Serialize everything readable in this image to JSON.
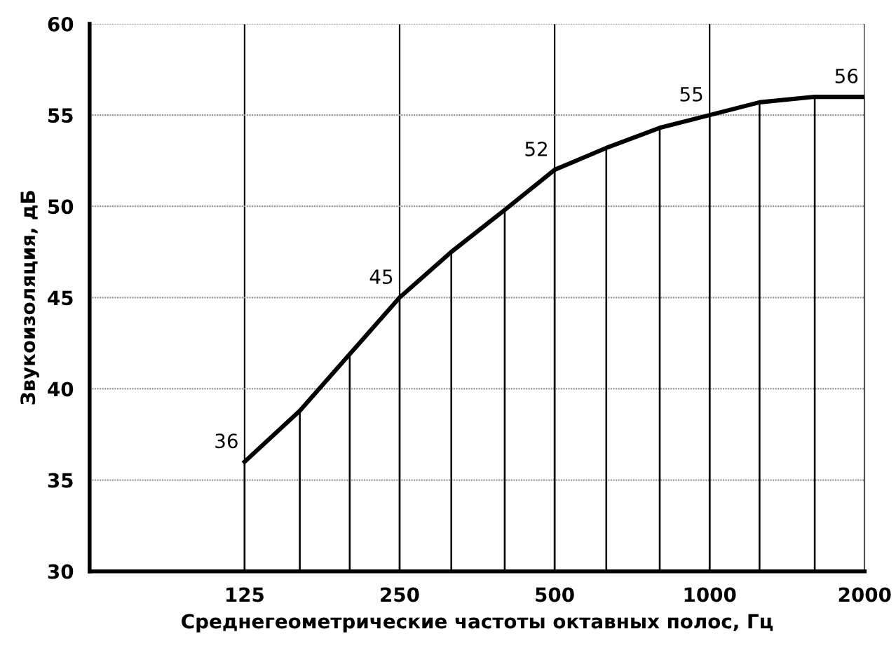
{
  "chart_data": {
    "type": "line",
    "xlabel": "Среднегеометрические частоты октавных полос, Гц",
    "ylabel": "Звукоизоляция, дБ",
    "x": [
      125,
      160,
      200,
      250,
      315,
      400,
      500,
      630,
      800,
      1000,
      1250,
      1600,
      2000
    ],
    "series": [
      {
        "type": "bar",
        "color": "#000000",
        "values": [
          36,
          38.8,
          41.9,
          45,
          47.5,
          49.8,
          52,
          53.2,
          54.3,
          55,
          55.7,
          56,
          56
        ]
      },
      {
        "color": "#000000",
        "marker": "none",
        "line_style": "solid",
        "values": [
          36,
          38.8,
          41.9,
          45,
          47.5,
          49.8,
          52,
          53.2,
          54.3,
          55,
          55.7,
          56,
          56
        ],
        "value_labels": [
          "36",
          null,
          null,
          "45",
          null,
          null,
          "52",
          null,
          null,
          "55",
          null,
          null,
          "56"
        ]
      }
    ],
    "log": "x",
    "xlim": [
      62.5,
      2000
    ],
    "xticks": [
      125,
      250,
      500,
      1000,
      2000
    ],
    "ylim": [
      30,
      60
    ],
    "yticks": [
      30,
      35,
      40,
      45,
      50,
      55,
      60
    ],
    "grid": true
  }
}
